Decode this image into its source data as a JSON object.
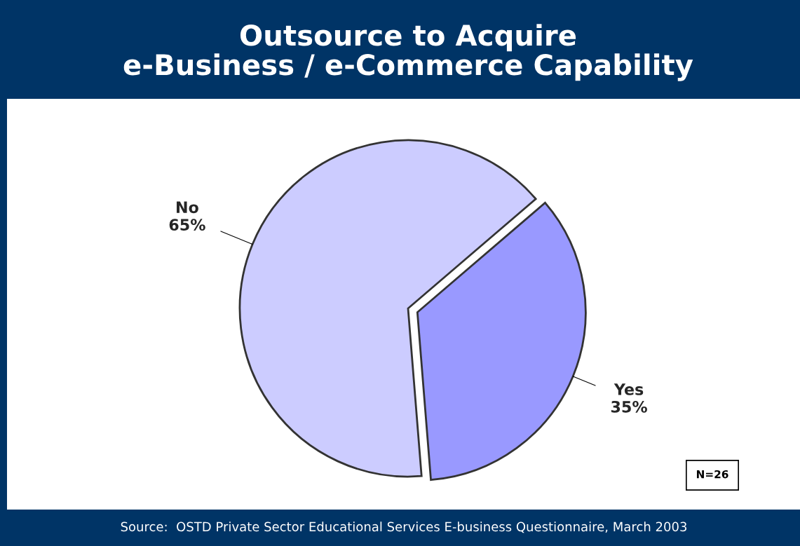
{
  "chart_data": {
    "type": "pie",
    "title": "Outsource to Acquire\ne-Business / e-Commerce Capability",
    "categories": [
      "Yes",
      "No"
    ],
    "values": [
      35,
      65
    ],
    "colors": [
      "#9999ff",
      "#ccccff"
    ],
    "value_labels": [
      "35%",
      "65%"
    ],
    "legend": false,
    "annotations": [
      "N=26",
      "Source:  OSTD Private Sector Educational Services E-business Questionnaire, March 2003"
    ]
  }
}
